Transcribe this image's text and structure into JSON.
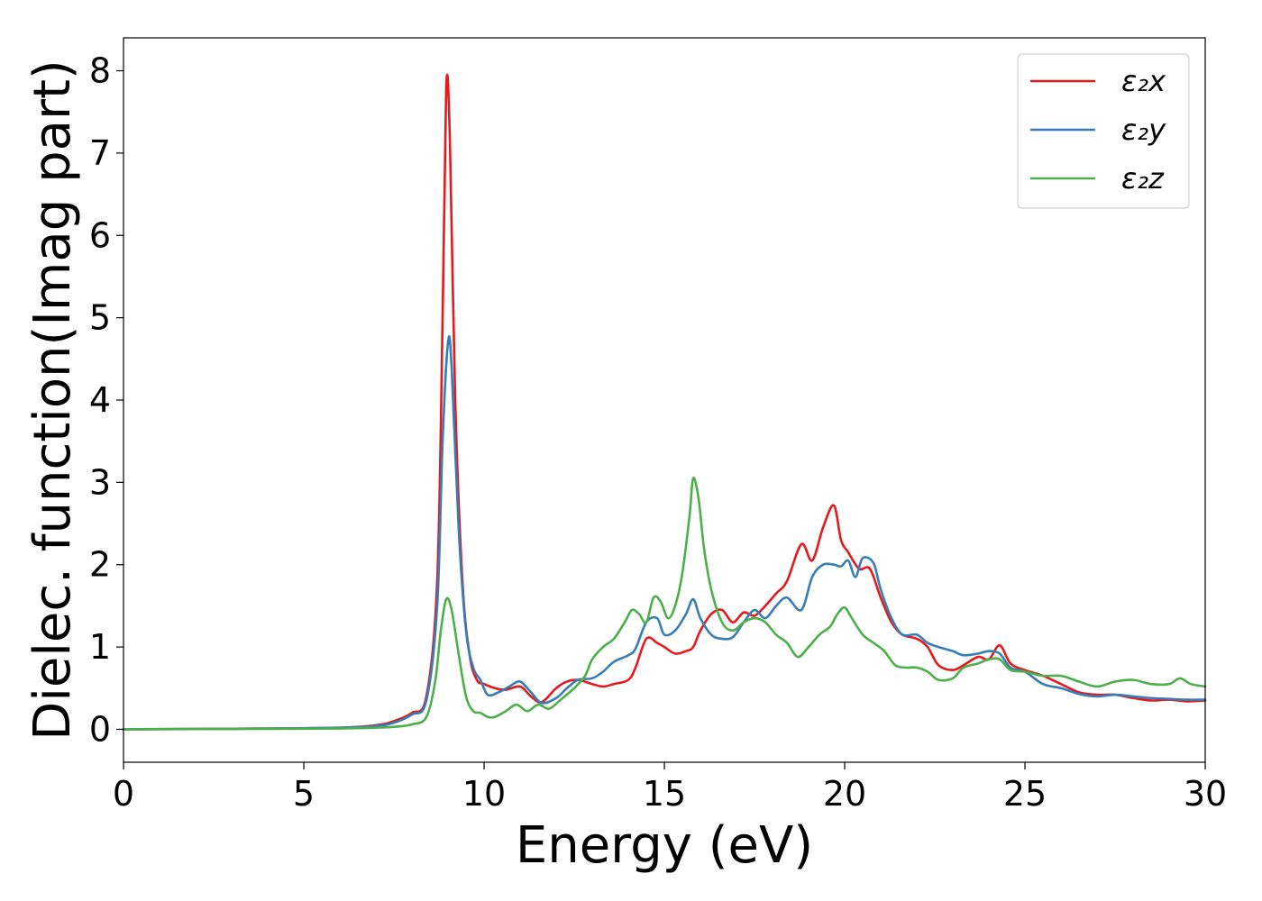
{
  "chart_data": {
    "type": "line",
    "xlabel": "Energy (eV)",
    "ylabel": "Dielec. function(Imag part)",
    "xlim": [
      0,
      30
    ],
    "ylim": [
      -0.4,
      8.4
    ],
    "xticks": [
      "0",
      "5",
      "10",
      "15",
      "20",
      "25",
      "30"
    ],
    "yticks": [
      "0",
      "1",
      "2",
      "3",
      "4",
      "5",
      "6",
      "7",
      "8"
    ],
    "grid": false,
    "legend_position": "top-right",
    "series": [
      {
        "name": "ε₂x",
        "color": "#e41a1c",
        "x": [
          0,
          2,
          4,
          6,
          7,
          7.5,
          8,
          8.4,
          8.7,
          8.85,
          8.95,
          9.05,
          9.2,
          9.4,
          9.6,
          9.8,
          10,
          10.3,
          10.6,
          11,
          11.3,
          11.6,
          12,
          12.3,
          12.6,
          13,
          13.3,
          13.6,
          14,
          14.2,
          14.5,
          14.8,
          15,
          15.3,
          15.6,
          15.8,
          16,
          16.3,
          16.6,
          16.9,
          17.2,
          17.5,
          17.8,
          18.1,
          18.4,
          18.8,
          19.1,
          19.4,
          19.7,
          19.9,
          20.1,
          20.4,
          20.7,
          21,
          21.3,
          21.6,
          22,
          22.3,
          22.6,
          23,
          23.3,
          23.7,
          24,
          24.3,
          24.6,
          25,
          25.5,
          26,
          26.5,
          27,
          27.5,
          28,
          28.5,
          29,
          29.5,
          30
        ],
        "y": [
          0,
          0.005,
          0.01,
          0.02,
          0.05,
          0.1,
          0.2,
          0.4,
          1.8,
          5.0,
          7.8,
          7.2,
          4.0,
          1.8,
          0.9,
          0.6,
          0.55,
          0.5,
          0.48,
          0.52,
          0.4,
          0.33,
          0.5,
          0.58,
          0.6,
          0.55,
          0.52,
          0.55,
          0.6,
          0.75,
          1.1,
          1.05,
          1.0,
          0.92,
          0.95,
          1.0,
          1.2,
          1.4,
          1.45,
          1.3,
          1.42,
          1.38,
          1.5,
          1.65,
          1.8,
          2.25,
          2.05,
          2.45,
          2.72,
          2.3,
          2.15,
          1.95,
          1.95,
          1.6,
          1.3,
          1.15,
          1.1,
          1.0,
          0.78,
          0.72,
          0.78,
          0.88,
          0.85,
          1.02,
          0.8,
          0.72,
          0.65,
          0.55,
          0.45,
          0.42,
          0.42,
          0.38,
          0.35,
          0.36,
          0.34,
          0.35
        ]
      },
      {
        "name": "ε₂y",
        "color": "#377eb8",
        "x": [
          0,
          2,
          4,
          6,
          7,
          7.5,
          8,
          8.4,
          8.7,
          8.85,
          9.0,
          9.1,
          9.3,
          9.5,
          9.7,
          9.9,
          10.1,
          10.4,
          10.7,
          11,
          11.3,
          11.6,
          12,
          12.3,
          12.6,
          13,
          13.3,
          13.6,
          14,
          14.2,
          14.5,
          14.8,
          15,
          15.3,
          15.6,
          15.8,
          16,
          16.3,
          16.6,
          16.9,
          17.2,
          17.5,
          17.8,
          18.1,
          18.4,
          18.8,
          19.1,
          19.4,
          19.7,
          19.9,
          20.1,
          20.3,
          20.5,
          20.8,
          21,
          21.3,
          21.6,
          22,
          22.3,
          22.6,
          23,
          23.3,
          23.7,
          24,
          24.3,
          24.6,
          25,
          25.5,
          26,
          26.5,
          27,
          27.5,
          28,
          28.5,
          29,
          29.5,
          30
        ],
        "y": [
          0,
          0.005,
          0.01,
          0.02,
          0.04,
          0.08,
          0.18,
          0.35,
          1.5,
          3.5,
          4.7,
          4.4,
          2.4,
          1.2,
          0.75,
          0.6,
          0.42,
          0.45,
          0.52,
          0.58,
          0.45,
          0.32,
          0.38,
          0.5,
          0.6,
          0.62,
          0.7,
          0.82,
          0.9,
          0.98,
          1.3,
          1.35,
          1.15,
          1.2,
          1.4,
          1.58,
          1.35,
          1.15,
          1.1,
          1.12,
          1.3,
          1.45,
          1.35,
          1.5,
          1.6,
          1.45,
          1.85,
          2.0,
          2.0,
          1.98,
          2.05,
          1.85,
          2.08,
          2.02,
          1.7,
          1.35,
          1.15,
          1.15,
          1.05,
          1.0,
          0.95,
          0.9,
          0.92,
          0.95,
          0.92,
          0.75,
          0.7,
          0.55,
          0.5,
          0.43,
          0.4,
          0.42,
          0.4,
          0.38,
          0.37,
          0.36,
          0.36
        ]
      },
      {
        "name": "ε₂z",
        "color": "#4daf4a",
        "x": [
          0,
          2,
          4,
          6,
          7,
          7.5,
          8,
          8.4,
          8.65,
          8.8,
          8.95,
          9.1,
          9.3,
          9.5,
          9.7,
          9.9,
          10.1,
          10.3,
          10.6,
          10.9,
          11.2,
          11.5,
          11.8,
          12.1,
          12.5,
          12.8,
          13,
          13.3,
          13.6,
          13.9,
          14.1,
          14.3,
          14.5,
          14.7,
          14.9,
          15.1,
          15.3,
          15.5,
          15.7,
          15.8,
          15.95,
          16.1,
          16.3,
          16.6,
          16.9,
          17.2,
          17.5,
          17.8,
          18.1,
          18.4,
          18.7,
          19,
          19.3,
          19.6,
          19.8,
          20,
          20.2,
          20.5,
          20.8,
          21.1,
          21.4,
          21.7,
          22,
          22.3,
          22.6,
          23,
          23.3,
          23.7,
          24,
          24.3,
          24.6,
          25,
          25.5,
          26,
          26.5,
          27,
          27.5,
          28,
          28.5,
          29,
          29.3,
          29.6,
          30
        ],
        "y": [
          0,
          0.003,
          0.006,
          0.01,
          0.02,
          0.03,
          0.06,
          0.15,
          0.6,
          1.2,
          1.58,
          1.45,
          0.9,
          0.4,
          0.22,
          0.2,
          0.15,
          0.15,
          0.22,
          0.3,
          0.22,
          0.3,
          0.25,
          0.35,
          0.5,
          0.65,
          0.85,
          1.0,
          1.1,
          1.3,
          1.45,
          1.4,
          1.3,
          1.6,
          1.55,
          1.35,
          1.5,
          1.9,
          2.6,
          3.05,
          2.8,
          2.2,
          1.7,
          1.3,
          1.2,
          1.3,
          1.35,
          1.3,
          1.15,
          1.05,
          0.88,
          1.0,
          1.15,
          1.25,
          1.4,
          1.48,
          1.35,
          1.15,
          1.05,
          0.95,
          0.78,
          0.75,
          0.75,
          0.7,
          0.6,
          0.62,
          0.75,
          0.8,
          0.85,
          0.85,
          0.72,
          0.7,
          0.65,
          0.65,
          0.58,
          0.52,
          0.58,
          0.6,
          0.55,
          0.55,
          0.62,
          0.55,
          0.52
        ]
      }
    ]
  }
}
